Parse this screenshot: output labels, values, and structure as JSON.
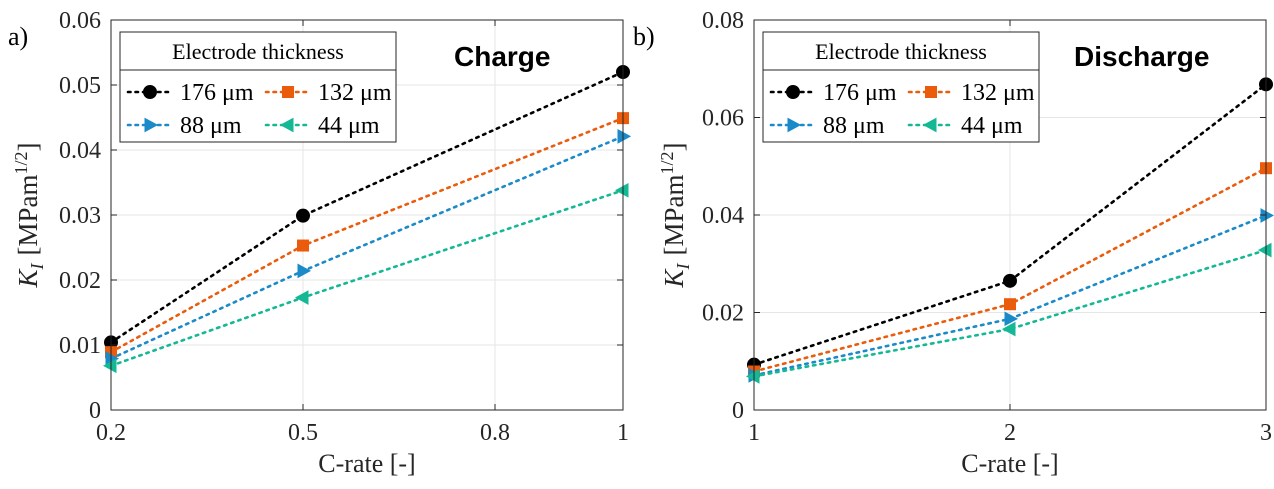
{
  "chart_data": [
    {
      "panel_label": "a)",
      "type": "line",
      "annotation": "Charge",
      "legend_title": "Electrode thickness",
      "xlabel": "C-rate [-]",
      "ylabel_main": "K",
      "ylabel_sub": "I",
      "ylabel_unit": "[MPam",
      "ylabel_sup": "1/2",
      "ylabel_close": "]",
      "xlim": [
        0.2,
        1.0
      ],
      "ylim": [
        0,
        0.06
      ],
      "xticks": [
        0.2,
        0.5,
        0.8,
        1
      ],
      "xtick_labels": [
        "0.2",
        "0.5",
        "0.8",
        "1"
      ],
      "yticks": [
        0,
        0.01,
        0.02,
        0.03,
        0.04,
        0.05,
        0.06
      ],
      "ytick_labels": [
        "0",
        "0.01",
        "0.02",
        "0.03",
        "0.04",
        "0.05",
        "0.06"
      ],
      "grid": true,
      "legend_position": "top-left",
      "x": [
        0.2,
        0.5,
        1.0
      ],
      "series": [
        {
          "name": "176 μm",
          "marker": "circle",
          "color": "#000000",
          "values": [
            0.0104,
            0.0299,
            0.052
          ]
        },
        {
          "name": "132 μm",
          "marker": "square",
          "color": "#ea5b0c",
          "values": [
            0.0089,
            0.0253,
            0.0449
          ]
        },
        {
          "name": "88 μm",
          "marker": "triangle-right",
          "color": "#1a8ac9",
          "values": [
            0.0079,
            0.0214,
            0.0421
          ]
        },
        {
          "name": "44 μm",
          "marker": "triangle-left",
          "color": "#14b894",
          "values": [
            0.0068,
            0.0173,
            0.0338
          ]
        }
      ]
    },
    {
      "panel_label": "b)",
      "type": "line",
      "annotation": "Discharge",
      "legend_title": "Electrode thickness",
      "xlabel": "C-rate [-]",
      "ylabel_main": "K",
      "ylabel_sub": "I",
      "ylabel_unit": "[MPam",
      "ylabel_sup": "1/2",
      "ylabel_close": "]",
      "xlim": [
        1,
        3
      ],
      "ylim": [
        0,
        0.08
      ],
      "xticks": [
        1,
        2,
        3
      ],
      "xtick_labels": [
        "1",
        "2",
        "3"
      ],
      "yticks": [
        0,
        0.02,
        0.04,
        0.06,
        0.08
      ],
      "ytick_labels": [
        "0",
        "0.02",
        "0.04",
        "0.06",
        "0.08"
      ],
      "grid": true,
      "legend_position": "top-left",
      "x": [
        1,
        2,
        3
      ],
      "series": [
        {
          "name": "176 μm",
          "marker": "circle",
          "color": "#000000",
          "values": [
            0.0093,
            0.0265,
            0.0668
          ]
        },
        {
          "name": "132 μm",
          "marker": "square",
          "color": "#ea5b0c",
          "values": [
            0.0079,
            0.0217,
            0.0496
          ]
        },
        {
          "name": "88 μm",
          "marker": "triangle-right",
          "color": "#1a8ac9",
          "values": [
            0.0071,
            0.0187,
            0.0399
          ]
        },
        {
          "name": "44 μm",
          "marker": "triangle-left",
          "color": "#14b894",
          "values": [
            0.0069,
            0.0166,
            0.0328
          ]
        }
      ]
    }
  ]
}
